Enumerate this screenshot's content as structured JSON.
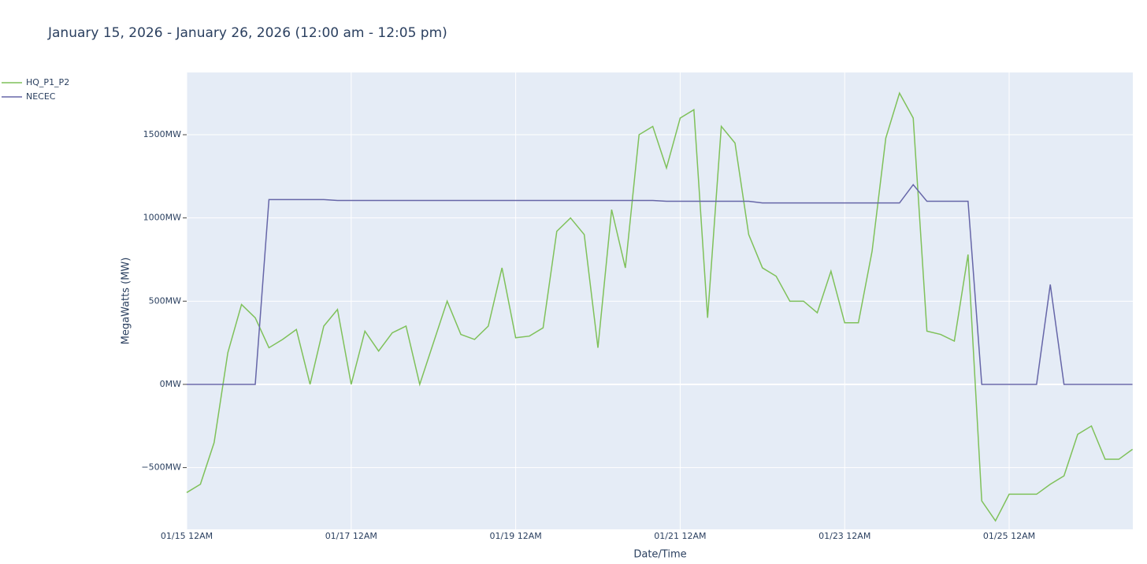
{
  "chart_data": {
    "type": "line",
    "title": "January 15, 2026 - January 26, 2026 (12:00 am - 12:05 pm)",
    "x_label": "Date/Time",
    "y_label": "MegaWatts (MW)",
    "x": [
      "2026-01-15T00:00",
      "2026-01-15T04:00",
      "2026-01-15T08:00",
      "2026-01-15T12:00",
      "2026-01-15T16:00",
      "2026-01-15T20:00",
      "2026-01-16T00:00",
      "2026-01-16T04:00",
      "2026-01-16T08:00",
      "2026-01-16T12:00",
      "2026-01-16T16:00",
      "2026-01-16T20:00",
      "2026-01-17T00:00",
      "2026-01-17T04:00",
      "2026-01-17T08:00",
      "2026-01-17T12:00",
      "2026-01-17T16:00",
      "2026-01-17T20:00",
      "2026-01-18T00:00",
      "2026-01-18T04:00",
      "2026-01-18T08:00",
      "2026-01-18T12:00",
      "2026-01-18T16:00",
      "2026-01-18T20:00",
      "2026-01-19T00:00",
      "2026-01-19T04:00",
      "2026-01-19T08:00",
      "2026-01-19T12:00",
      "2026-01-19T16:00",
      "2026-01-19T20:00",
      "2026-01-20T00:00",
      "2026-01-20T04:00",
      "2026-01-20T08:00",
      "2026-01-20T12:00",
      "2026-01-20T16:00",
      "2026-01-20T20:00",
      "2026-01-21T00:00",
      "2026-01-21T04:00",
      "2026-01-21T08:00",
      "2026-01-21T12:00",
      "2026-01-21T16:00",
      "2026-01-21T20:00",
      "2026-01-22T00:00",
      "2026-01-22T04:00",
      "2026-01-22T08:00",
      "2026-01-22T12:00",
      "2026-01-22T16:00",
      "2026-01-22T20:00",
      "2026-01-23T00:00",
      "2026-01-23T04:00",
      "2026-01-23T08:00",
      "2026-01-23T12:00",
      "2026-01-23T16:00",
      "2026-01-23T20:00",
      "2026-01-24T00:00",
      "2026-01-24T04:00",
      "2026-01-24T08:00",
      "2026-01-24T12:00",
      "2026-01-24T16:00",
      "2026-01-24T20:00",
      "2026-01-25T00:00",
      "2026-01-25T04:00",
      "2026-01-25T08:00",
      "2026-01-25T12:00",
      "2026-01-25T16:00",
      "2026-01-25T20:00",
      "2026-01-26T00:00",
      "2026-01-26T04:00",
      "2026-01-26T08:00",
      "2026-01-26T12:00"
    ],
    "series": [
      {
        "name": "HQ_P1_P2",
        "color": "#7fc15a",
        "values": [
          -650,
          -600,
          -350,
          190,
          480,
          400,
          220,
          270,
          330,
          0,
          350,
          450,
          0,
          320,
          200,
          310,
          350,
          0,
          250,
          500,
          300,
          270,
          350,
          700,
          280,
          290,
          340,
          920,
          1000,
          900,
          220,
          1050,
          700,
          1500,
          1550,
          1300,
          1600,
          1650,
          400,
          1550,
          1450,
          900,
          700,
          650,
          500,
          500,
          430,
          680,
          370,
          370,
          800,
          1480,
          1750,
          1600,
          320,
          300,
          260,
          780,
          -700,
          -820,
          -660,
          -660,
          -660,
          -600,
          -550,
          -300,
          -250,
          -450,
          -450,
          -390
        ]
      },
      {
        "name": "NECEC",
        "color": "#6666a8",
        "values": [
          0,
          0,
          0,
          0,
          0,
          0,
          1110,
          1110,
          1110,
          1110,
          1110,
          1105,
          1105,
          1105,
          1105,
          1105,
          1105,
          1105,
          1105,
          1105,
          1105,
          1105,
          1105,
          1105,
          1105,
          1105,
          1105,
          1105,
          1105,
          1105,
          1105,
          1105,
          1105,
          1105,
          1105,
          1100,
          1100,
          1100,
          1100,
          1100,
          1100,
          1100,
          1090,
          1090,
          1090,
          1090,
          1090,
          1090,
          1090,
          1090,
          1090,
          1090,
          1090,
          1200,
          1100,
          1100,
          1100,
          1100,
          0,
          0,
          0,
          0,
          0,
          600,
          0,
          0,
          0,
          0,
          0,
          0
        ]
      }
    ],
    "xlim": [
      "2026-01-15T00:00",
      "2026-01-26T12:05"
    ],
    "xticks": [
      {
        "value": "2026-01-15T00:00",
        "label": "01/15 12AM"
      },
      {
        "value": "2026-01-17T00:00",
        "label": "01/17 12AM"
      },
      {
        "value": "2026-01-19T00:00",
        "label": "01/19 12AM"
      },
      {
        "value": "2026-01-21T00:00",
        "label": "01/21 12AM"
      },
      {
        "value": "2026-01-23T00:00",
        "label": "01/23 12AM"
      },
      {
        "value": "2026-01-25T00:00",
        "label": "01/25 12AM"
      }
    ],
    "ylim": [
      -871,
      1874
    ],
    "yticks": [
      {
        "value": -500,
        "label": "−500MW"
      },
      {
        "value": 0,
        "label": "0MW"
      },
      {
        "value": 500,
        "label": "500MW"
      },
      {
        "value": 1000,
        "label": "1000MW"
      },
      {
        "value": 1500,
        "label": "1500MW"
      }
    ],
    "grid": true,
    "legend": "top-left"
  }
}
